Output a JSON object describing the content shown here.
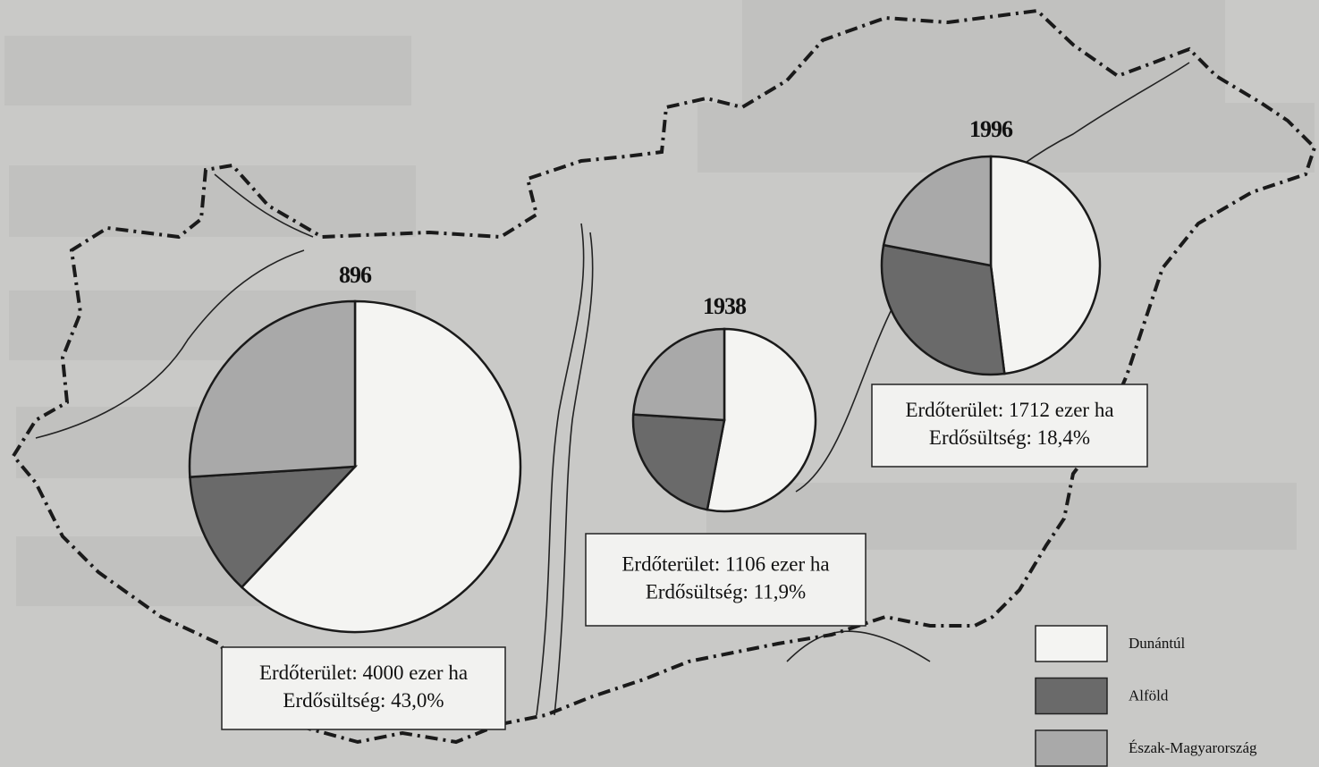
{
  "chart_data": [
    {
      "type": "pie",
      "title": "896",
      "categories": [
        "Dunántúl",
        "Alföld",
        "Észak-Magyarország"
      ],
      "values": [
        62,
        12,
        26
      ],
      "colors": [
        "#f4f4f2",
        "#6a6a6a",
        "#a9a9a9"
      ],
      "annotations": [
        "Erdőterület: 4000 ezer ha",
        "Erdősültség: 43,0%"
      ]
    },
    {
      "type": "pie",
      "title": "1938",
      "categories": [
        "Dunántúl",
        "Alföld",
        "Észak-Magyarország"
      ],
      "values": [
        53,
        23,
        24
      ],
      "colors": [
        "#f4f4f2",
        "#6a6a6a",
        "#a9a9a9"
      ],
      "annotations": [
        "Erdőterület: 1106 ezer ha",
        "Erdősültség: 11,9%"
      ]
    },
    {
      "type": "pie",
      "title": "1996",
      "categories": [
        "Dunántúl",
        "Alföld",
        "Észak-Magyarország"
      ],
      "values": [
        48,
        30,
        22
      ],
      "colors": [
        "#f4f4f2",
        "#6a6a6a",
        "#a9a9a9"
      ],
      "annotations": [
        "Erdőterület: 1712 ezer ha",
        "Erdősültség: 18,4%"
      ]
    }
  ]
}
